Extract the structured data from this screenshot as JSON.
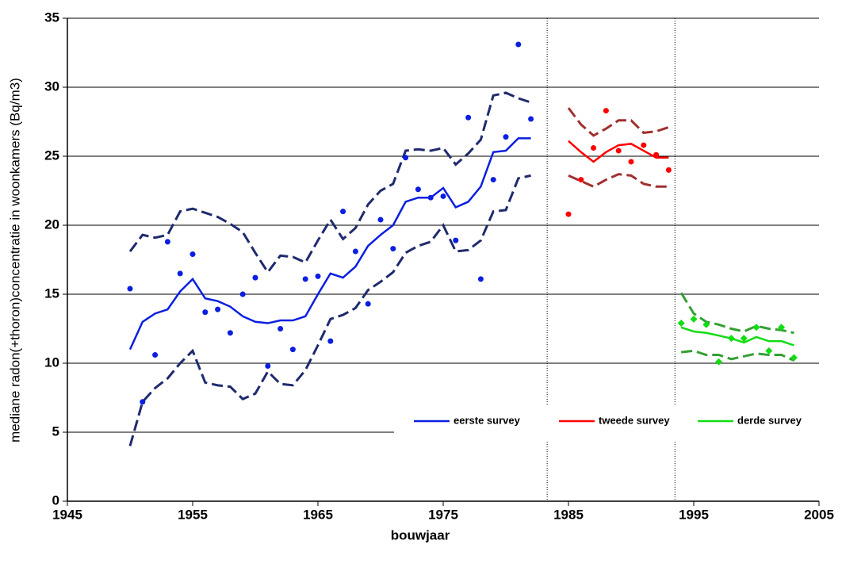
{
  "chart_data": {
    "type": "line",
    "x_label": "bouwjaar",
    "y_label": "mediane radon(+thoron)concentratie in woonkamers (Bq/m3)",
    "xlim": [
      1945,
      2005
    ],
    "xticks": [
      1945,
      1955,
      1965,
      1975,
      1985,
      1995,
      2005
    ],
    "ylim": [
      0,
      35
    ],
    "yticks": [
      0,
      5,
      10,
      15,
      20,
      25,
      30,
      35
    ],
    "grid": true,
    "separators": [
      1983.3,
      1993.5
    ],
    "series": [
      {
        "name": "eerste survey",
        "color": "#0a1fe0",
        "band_color": "#1f2a6e",
        "marker": "circle",
        "x": [
          1950,
          1951,
          1952,
          1953,
          1954,
          1955,
          1956,
          1957,
          1958,
          1959,
          1960,
          1961,
          1962,
          1963,
          1964,
          1965,
          1966,
          1967,
          1968,
          1969,
          1970,
          1971,
          1972,
          1973,
          1974,
          1975,
          1976,
          1977,
          1978,
          1979,
          1980,
          1981,
          1982
        ],
        "values": [
          15.4,
          7.2,
          10.6,
          18.8,
          16.5,
          17.9,
          13.7,
          13.9,
          12.2,
          15.0,
          16.2,
          9.8,
          12.5,
          11.0,
          16.1,
          16.3,
          11.6,
          21.0,
          18.1,
          14.3,
          20.4,
          18.3,
          24.9,
          22.6,
          22.0,
          22.1,
          18.9,
          27.8,
          16.1,
          23.3,
          26.4,
          33.1,
          27.7
        ],
        "median": [
          11.0,
          13.0,
          13.6,
          13.9,
          15.2,
          16.1,
          14.7,
          14.5,
          14.1,
          13.4,
          13.0,
          12.9,
          13.1,
          13.1,
          13.4,
          15.0,
          16.5,
          16.2,
          17.0,
          18.5,
          19.3,
          20.0,
          21.7,
          22.0,
          22.0,
          22.7,
          21.3,
          21.7,
          22.8,
          25.3,
          25.4,
          26.3,
          26.3
        ],
        "upper": [
          18.1,
          19.3,
          19.1,
          19.3,
          21.0,
          21.2,
          20.9,
          20.6,
          20.1,
          19.5,
          18.0,
          16.6,
          17.8,
          17.7,
          17.3,
          18.9,
          20.4,
          19.0,
          19.8,
          21.5,
          22.5,
          23.0,
          25.4,
          25.5,
          25.4,
          25.6,
          24.4,
          25.2,
          26.2,
          29.4,
          29.6,
          29.2,
          28.9
        ],
        "lower": [
          4.0,
          7.2,
          8.2,
          8.9,
          10.0,
          10.9,
          8.6,
          8.4,
          8.3,
          7.4,
          7.8,
          9.4,
          8.5,
          8.4,
          9.5,
          11.3,
          13.2,
          13.5,
          14.0,
          15.3,
          15.9,
          16.6,
          18.0,
          18.5,
          18.8,
          20.0,
          18.1,
          18.2,
          18.9,
          21.0,
          21.1,
          23.4,
          23.6
        ]
      },
      {
        "name": "tweede survey",
        "color": "#ff0000",
        "band_color": "#a03030",
        "marker": "circle",
        "x": [
          1985,
          1986,
          1987,
          1988,
          1989,
          1990,
          1991,
          1992,
          1993
        ],
        "values": [
          20.8,
          23.3,
          25.6,
          28.3,
          25.4,
          24.6,
          25.8,
          25.1,
          24.0
        ],
        "median": [
          26.1,
          25.3,
          24.6,
          25.3,
          25.8,
          25.9,
          25.4,
          24.9,
          24.9
        ],
        "upper": [
          28.5,
          27.3,
          26.5,
          27.0,
          27.6,
          27.6,
          26.7,
          26.8,
          27.1
        ],
        "lower": [
          23.6,
          23.2,
          22.8,
          23.3,
          23.7,
          23.6,
          23.0,
          22.8,
          22.8
        ]
      },
      {
        "name": "derde survey",
        "color": "#11dd11",
        "band_color": "#33a033",
        "marker": "diamond",
        "x": [
          1994,
          1995,
          1996,
          1997,
          1998,
          1999,
          2000,
          2001,
          2002,
          2003
        ],
        "values": [
          12.9,
          13.2,
          12.8,
          10.1,
          11.8,
          11.8,
          12.6,
          10.9,
          12.6,
          10.4
        ],
        "median": [
          12.6,
          12.3,
          12.2,
          12.0,
          11.8,
          11.5,
          11.9,
          11.6,
          11.6,
          11.3
        ],
        "upper": [
          15.1,
          13.6,
          13.0,
          12.8,
          12.5,
          12.3,
          12.7,
          12.5,
          12.4,
          12.2
        ],
        "lower": [
          10.8,
          10.9,
          10.6,
          10.6,
          10.3,
          10.5,
          10.7,
          10.6,
          10.6,
          10.2
        ]
      }
    ]
  }
}
